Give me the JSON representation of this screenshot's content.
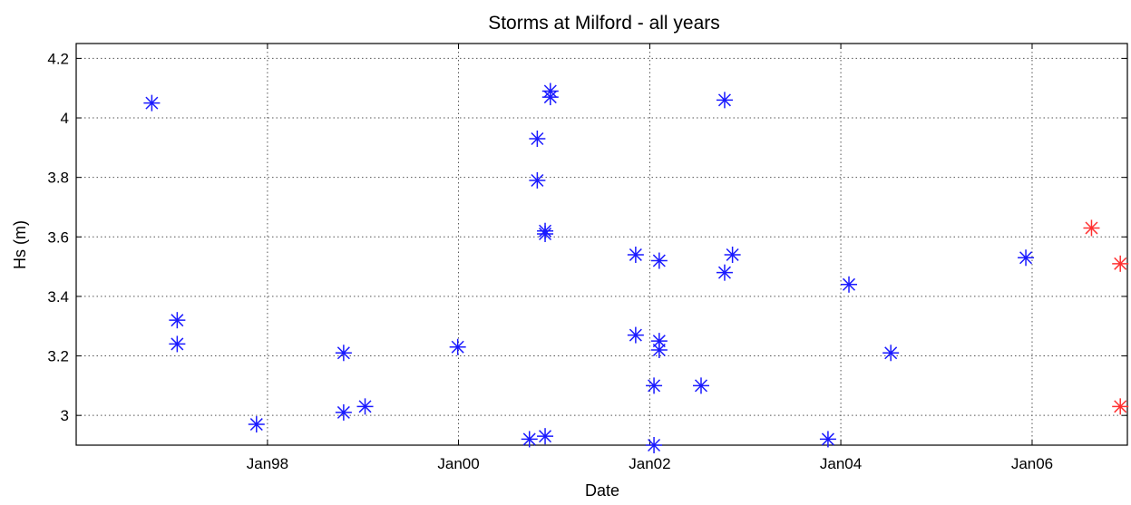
{
  "chart_data": {
    "type": "scatter",
    "title": "Storms at Milford - all years",
    "xlabel": "Date",
    "ylabel": "Hs (m)",
    "x_is_date": true,
    "xlim": [
      "1996-01-01",
      "2006-12-31"
    ],
    "ylim": [
      2.9,
      4.25
    ],
    "grid": true,
    "marker": "asterisk",
    "x_ticks": [
      {
        "label": "Jan98",
        "date": "1998-01-01"
      },
      {
        "label": "Jan00",
        "date": "2000-01-01"
      },
      {
        "label": "Jan02",
        "date": "2002-01-01"
      },
      {
        "label": "Jan04",
        "date": "2004-01-01"
      },
      {
        "label": "Jan06",
        "date": "2006-01-01"
      }
    ],
    "y_ticks": [
      {
        "label": "3",
        "value": 3.0
      },
      {
        "label": "3.2",
        "value": 3.2
      },
      {
        "label": "3.4",
        "value": 3.4
      },
      {
        "label": "3.6",
        "value": 3.6
      },
      {
        "label": "3.8",
        "value": 3.8
      },
      {
        "label": "4",
        "value": 4.0
      },
      {
        "label": "4.2",
        "value": 4.2
      }
    ],
    "series": [
      {
        "color": "#1a1aff",
        "points": [
          {
            "x": "1996-10-16",
            "y": 4.05
          },
          {
            "x": "1997-01-21",
            "y": 3.32
          },
          {
            "x": "1997-01-21",
            "y": 3.24
          },
          {
            "x": "1997-11-20",
            "y": 2.97
          },
          {
            "x": "1998-10-19",
            "y": 3.01
          },
          {
            "x": "1998-10-19",
            "y": 3.21
          },
          {
            "x": "1999-01-09",
            "y": 3.03
          },
          {
            "x": "1999-12-29",
            "y": 3.23
          },
          {
            "x": "2000-09-28",
            "y": 2.92
          },
          {
            "x": "2000-10-28",
            "y": 3.93
          },
          {
            "x": "2000-10-28",
            "y": 3.79
          },
          {
            "x": "2000-11-27",
            "y": 3.61
          },
          {
            "x": "2000-11-27",
            "y": 3.62
          },
          {
            "x": "2000-11-27",
            "y": 2.93
          },
          {
            "x": "2000-12-17",
            "y": 4.09
          },
          {
            "x": "2000-12-17",
            "y": 4.07
          },
          {
            "x": "2001-11-08",
            "y": 3.54
          },
          {
            "x": "2001-11-08",
            "y": 3.27
          },
          {
            "x": "2002-01-17",
            "y": 3.1
          },
          {
            "x": "2002-01-17",
            "y": 2.9
          },
          {
            "x": "2002-02-06",
            "y": 3.52
          },
          {
            "x": "2002-02-06",
            "y": 3.25
          },
          {
            "x": "2002-02-06",
            "y": 3.22
          },
          {
            "x": "2002-07-16",
            "y": 3.1
          },
          {
            "x": "2002-10-14",
            "y": 4.06
          },
          {
            "x": "2002-10-14",
            "y": 3.48
          },
          {
            "x": "2002-11-13",
            "y": 3.54
          },
          {
            "x": "2003-11-13",
            "y": 2.92
          },
          {
            "x": "2004-02-01",
            "y": 3.44
          },
          {
            "x": "2004-07-10",
            "y": 3.21
          },
          {
            "x": "2005-12-08",
            "y": 3.53
          }
        ]
      },
      {
        "color": "#ff3030",
        "points": [
          {
            "x": "2006-08-16",
            "y": 3.63
          },
          {
            "x": "2006-12-04",
            "y": 3.51
          },
          {
            "x": "2006-12-04",
            "y": 3.03
          }
        ]
      }
    ]
  }
}
